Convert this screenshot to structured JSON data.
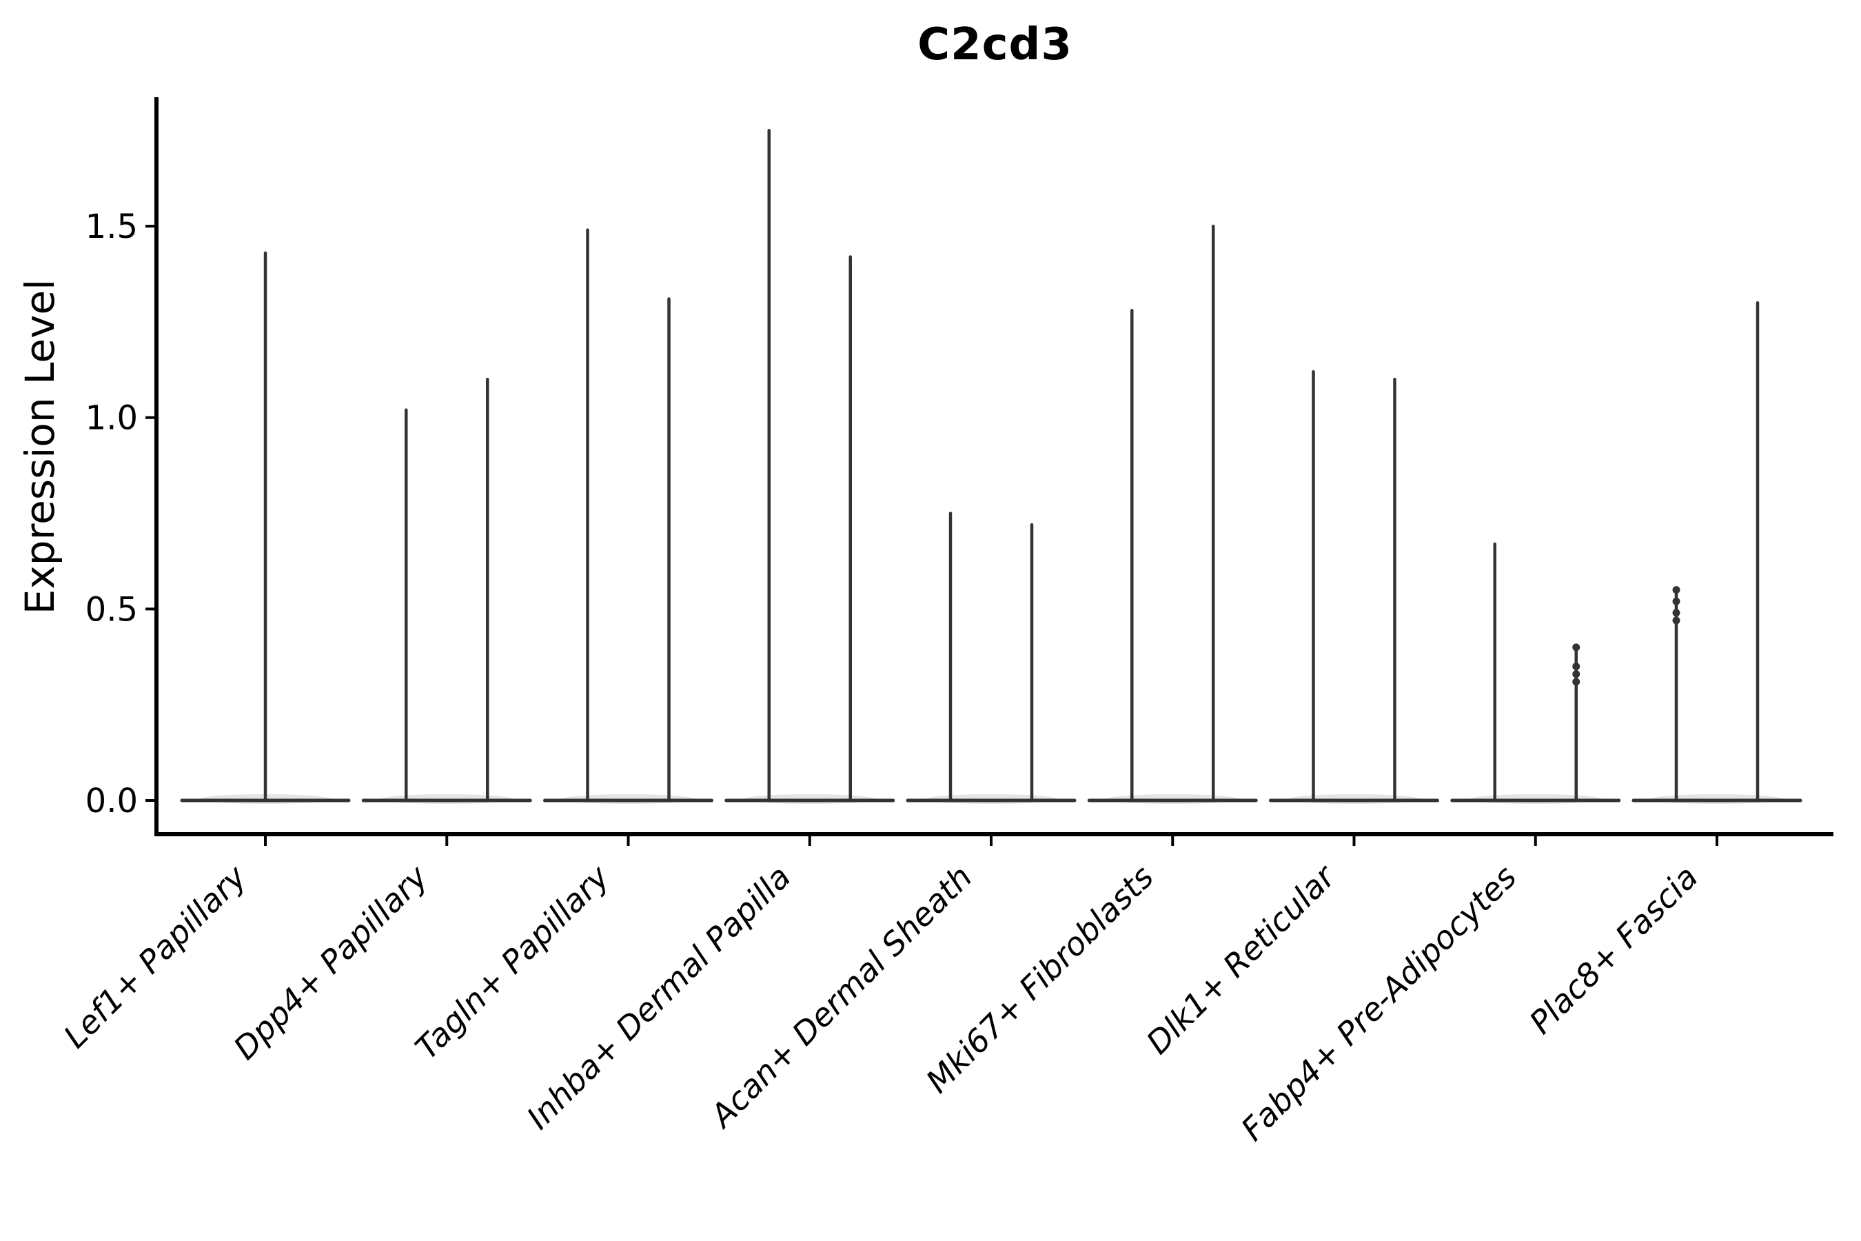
{
  "chart_data": {
    "type": "violin",
    "title": "C2cd3",
    "ylabel": "Expression Level",
    "xlabel": "",
    "ylim": [
      -0.09,
      1.84
    ],
    "yticks": [
      0.0,
      0.5,
      1.0,
      1.5
    ],
    "ytick_labels": [
      "0.0",
      "0.5",
      "1.0",
      "1.5"
    ],
    "grid": false,
    "legend_position": "none",
    "background_color": "#ffffff",
    "violin_color": "#333333",
    "spine_color": "#000000",
    "categories": [
      "Lef1+ Papillary",
      "Dpp4+ Papillary",
      "Tagln+ Papillary",
      "Inhba+ Dermal Papilla",
      "Acan+ Dermal Sheath",
      "Mki67+ Fibroblasts",
      "Dlk1+ Reticular",
      "Fabp4+ Pre-Adipocytes",
      "Plac8+ Fascia"
    ],
    "violins": [
      {
        "category": "Lef1+ Papillary",
        "position": "center",
        "max_expression": 1.43,
        "jitter_points": []
      },
      {
        "category": "Dpp4+ Papillary",
        "position": "left",
        "max_expression": 1.02,
        "jitter_points": []
      },
      {
        "category": "Dpp4+ Papillary",
        "position": "right",
        "max_expression": 1.1,
        "jitter_points": []
      },
      {
        "category": "Tagln+ Papillary",
        "position": "left",
        "max_expression": 1.49,
        "jitter_points": []
      },
      {
        "category": "Tagln+ Papillary",
        "position": "right",
        "max_expression": 1.31,
        "jitter_points": []
      },
      {
        "category": "Inhba+ Dermal Papilla",
        "position": "left",
        "max_expression": 1.75,
        "jitter_points": []
      },
      {
        "category": "Inhba+ Dermal Papilla",
        "position": "right",
        "max_expression": 1.42,
        "jitter_points": []
      },
      {
        "category": "Acan+ Dermal Sheath",
        "position": "left",
        "max_expression": 0.75,
        "jitter_points": []
      },
      {
        "category": "Acan+ Dermal Sheath",
        "position": "right",
        "max_expression": 0.72,
        "jitter_points": []
      },
      {
        "category": "Mki67+ Fibroblasts",
        "position": "left",
        "max_expression": 1.28,
        "jitter_points": []
      },
      {
        "category": "Mki67+ Fibroblasts",
        "position": "right",
        "max_expression": 1.5,
        "jitter_points": []
      },
      {
        "category": "Dlk1+ Reticular",
        "position": "left",
        "max_expression": 1.12,
        "jitter_points": []
      },
      {
        "category": "Dlk1+ Reticular",
        "position": "right",
        "max_expression": 1.1,
        "jitter_points": []
      },
      {
        "category": "Fabp4+ Pre-Adipocytes",
        "position": "left",
        "max_expression": 0.67,
        "jitter_points": []
      },
      {
        "category": "Fabp4+ Pre-Adipocytes",
        "position": "right",
        "max_expression": 0.4,
        "jitter_points": [
          0.4,
          0.35,
          0.33,
          0.31
        ]
      },
      {
        "category": "Plac8+ Fascia",
        "position": "left",
        "max_expression": 0.55,
        "jitter_points": [
          0.55,
          0.52,
          0.49,
          0.47
        ]
      },
      {
        "category": "Plac8+ Fascia",
        "position": "right",
        "max_expression": 1.3,
        "jitter_points": []
      }
    ]
  }
}
